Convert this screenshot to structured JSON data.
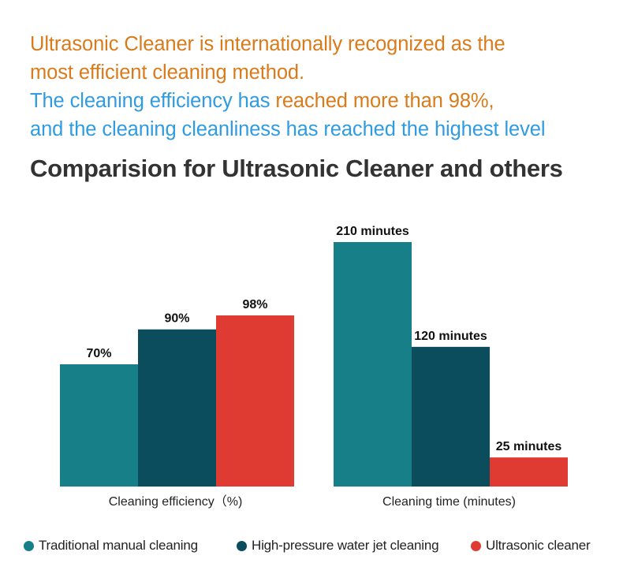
{
  "intro": {
    "line1": "Ultrasonic Cleaner is internationally recognized as the",
    "line2": "most efficient cleaning method.",
    "line3_a": "The cleaning efficiency has ",
    "line3_b": "reached more than 98%,",
    "line4": "and the cleaning cleanliness has reached the highest level"
  },
  "heading": "Comparision for Ultrasonic Cleaner and others",
  "colors": {
    "traditional": "#167f87",
    "high_pressure": "#0b4d5c",
    "ultrasonic": "#df3b33",
    "orange_text": "#d97b1b",
    "blue_text": "#2f9be0"
  },
  "chart_data": [
    {
      "type": "bar",
      "xlabel": "Cleaning efficiency（%)",
      "categories": [
        "Traditional manual cleaning",
        "High-pressure water jet cleaning",
        "Ultrasonic cleaner"
      ],
      "values": [
        70,
        90,
        98
      ],
      "data_labels": [
        "70%",
        "90%",
        "98%"
      ],
      "ylim": [
        0,
        140
      ],
      "grid": false
    },
    {
      "type": "bar",
      "xlabel": "Cleaning time (minutes)",
      "categories": [
        "Traditional manual cleaning",
        "High-pressure water jet cleaning",
        "Ultrasonic cleaner"
      ],
      "values": [
        210,
        120,
        25
      ],
      "data_labels": [
        "210 minutes",
        "120 minutes",
        "25 minutes"
      ],
      "ylim": [
        0,
        210
      ],
      "grid": false
    }
  ],
  "legend": {
    "placement": "bottom",
    "items": [
      {
        "label": "Traditional manual cleaning",
        "color": "#167f87"
      },
      {
        "label": "High-pressure water jet cleaning",
        "color": "#0b4d5c"
      },
      {
        "label": "Ultrasonic cleaner",
        "color": "#df3b33"
      }
    ]
  }
}
